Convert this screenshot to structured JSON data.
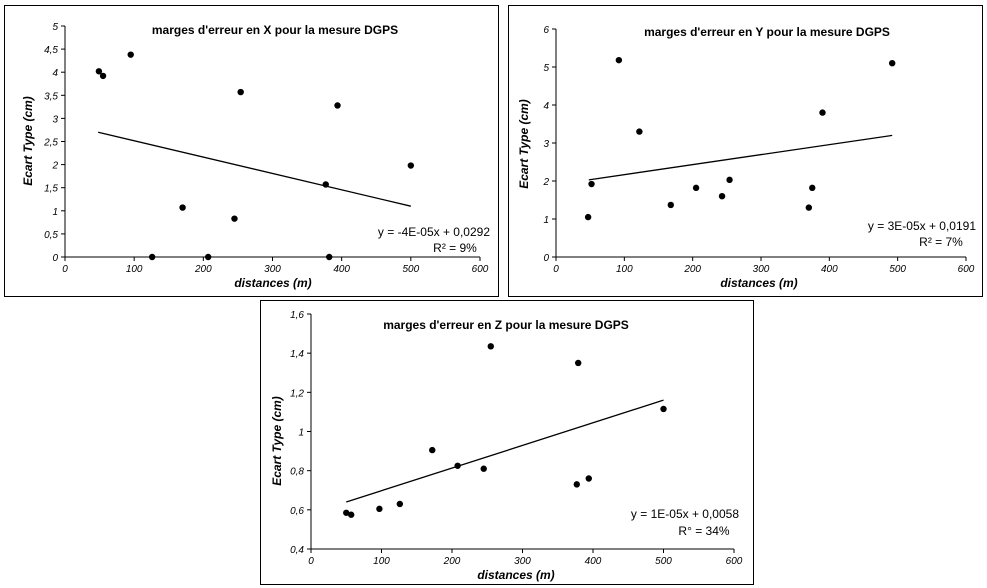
{
  "chart_data": [
    {
      "id": "x",
      "type": "scatter",
      "title": "marges d'erreur en X pour la mesure DGPS",
      "xlabel": "distances (m)",
      "ylabel": "Ecart Type (cm)",
      "xlim": [
        0,
        600
      ],
      "ylim": [
        0,
        5
      ],
      "xticks": [
        "0",
        "100",
        "200",
        "300",
        "400",
        "500",
        "600"
      ],
      "yticks": [
        "0",
        "0,5",
        "1",
        "1,5",
        "2",
        "2,5",
        "3",
        "3,5",
        "4",
        "4,5",
        "5"
      ],
      "points": [
        [
          49,
          4.02
        ],
        [
          55,
          3.92
        ],
        [
          95,
          4.38
        ],
        [
          126,
          0.0
        ],
        [
          170,
          1.07
        ],
        [
          207,
          0.0
        ],
        [
          245,
          0.83
        ],
        [
          254,
          3.57
        ],
        [
          377,
          1.57
        ],
        [
          382,
          0.0
        ],
        [
          394,
          3.28
        ],
        [
          500,
          1.98
        ]
      ],
      "trendline": [
        [
          48,
          2.7
        ],
        [
          500,
          1.1
        ]
      ],
      "equation": "y = -4E-05x + 0,0292",
      "r2": "R² = 9%"
    },
    {
      "id": "y",
      "type": "scatter",
      "title": "marges d'erreur en Y pour la mesure DGPS",
      "xlabel": "distances (m)",
      "ylabel": "Ecart Type (cm)",
      "xlim": [
        0,
        600
      ],
      "ylim": [
        0,
        6
      ],
      "xticks": [
        "0",
        "100",
        "200",
        "300",
        "400",
        "500",
        "600"
      ],
      "yticks": [
        "0",
        "1",
        "2",
        "3",
        "4",
        "5",
        "6"
      ],
      "points": [
        [
          47,
          1.05
        ],
        [
          52,
          1.92
        ],
        [
          92,
          5.18
        ],
        [
          122,
          3.3
        ],
        [
          168,
          1.37
        ],
        [
          205,
          1.82
        ],
        [
          243,
          1.6
        ],
        [
          254,
          2.03
        ],
        [
          370,
          1.3
        ],
        [
          375,
          1.82
        ],
        [
          390,
          3.8
        ],
        [
          492,
          5.1
        ]
      ],
      "trendline": [
        [
          48,
          2.03
        ],
        [
          492,
          3.2
        ]
      ],
      "equation": "y = 3E-05x + 0,0191",
      "r2": "R² = 7%"
    },
    {
      "id": "z",
      "type": "scatter",
      "title": "marges d'erreur en Z pour la mesure DGPS",
      "xlabel": "distances (m)",
      "ylabel": "Ecart Type (cm)",
      "xlim": [
        0,
        600
      ],
      "ylim": [
        0.4,
        1.6
      ],
      "xticks": [
        "0",
        "100",
        "200",
        "300",
        "400",
        "500",
        "600"
      ],
      "yticks": [
        "0,4",
        "0,6",
        "0,8",
        "1",
        "1,2",
        "1,4",
        "1,6"
      ],
      "points": [
        [
          50,
          0.585
        ],
        [
          57,
          0.575
        ],
        [
          97,
          0.605
        ],
        [
          126,
          0.63
        ],
        [
          172,
          0.905
        ],
        [
          208,
          0.825
        ],
        [
          245,
          0.81
        ],
        [
          255,
          1.435
        ],
        [
          379,
          1.35
        ],
        [
          377,
          0.73
        ],
        [
          394,
          0.76
        ],
        [
          500,
          1.115
        ]
      ],
      "trendline": [
        [
          50,
          0.64
        ],
        [
          500,
          1.16
        ]
      ],
      "equation": "y = 1E-05x + 0,0058",
      "r2": "R° = 34%"
    }
  ]
}
